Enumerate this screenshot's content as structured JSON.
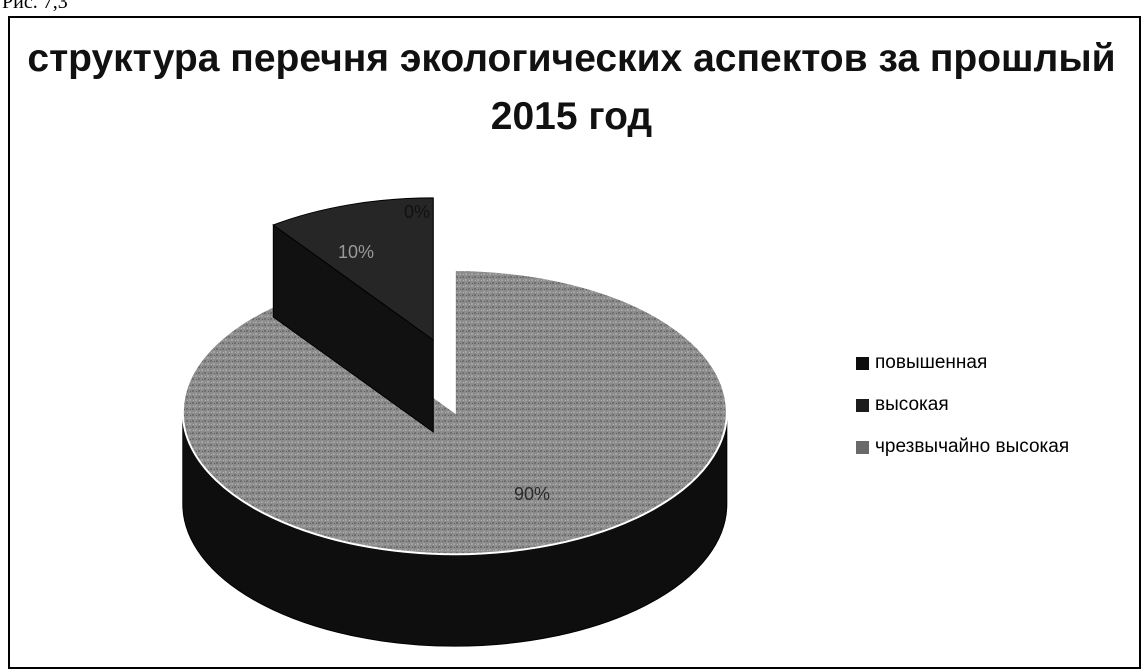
{
  "caption": "Рис. 7,3",
  "chart_data": {
    "type": "pie",
    "title": "структура перечня экологических аспектов за прошлый 2015 год",
    "three_d": true,
    "exploded": true,
    "legend_position": "right",
    "categories": [
      "повышенная",
      "высокая",
      "чрезвычайно высокая"
    ],
    "values": [
      0,
      10,
      90
    ],
    "data_labels": [
      "0%",
      "10%",
      "90%"
    ],
    "colors": [
      "#0d0d0d",
      "#1c1c1c",
      "#8a8a8a"
    ]
  }
}
